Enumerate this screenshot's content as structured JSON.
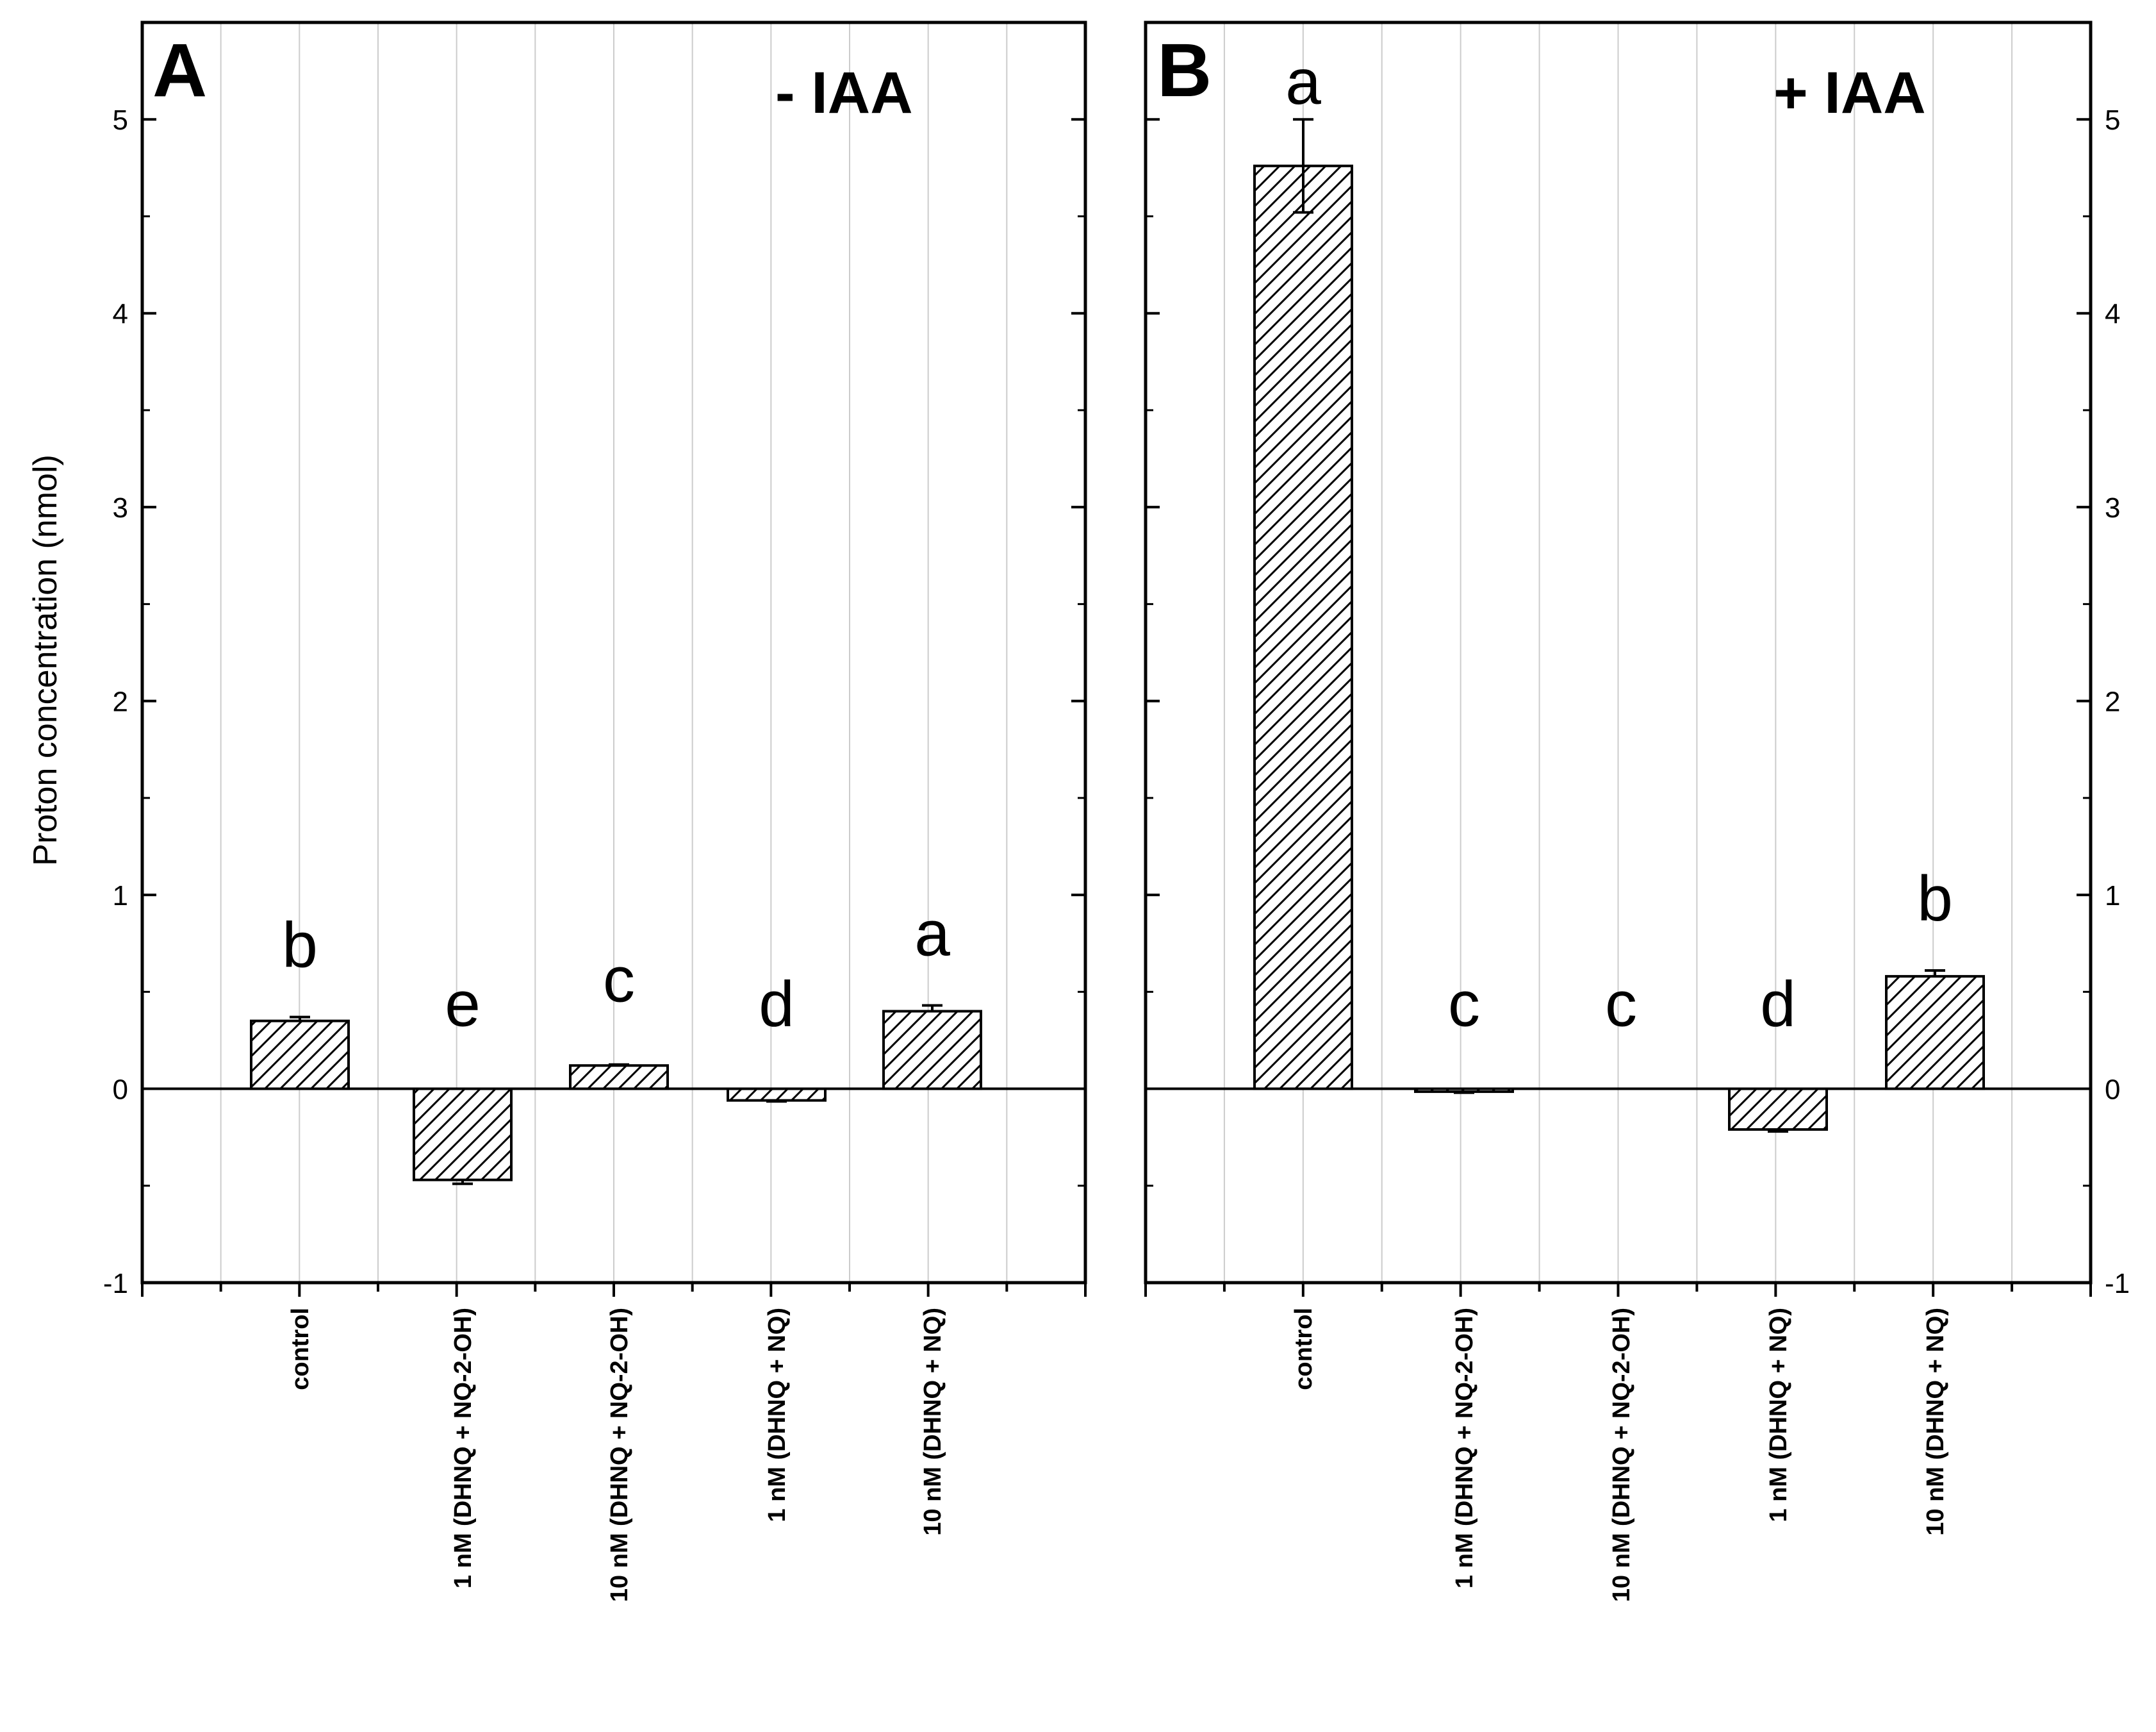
{
  "chart_data": [
    {
      "type": "bar",
      "panel": "A",
      "condition": "- IAA",
      "ylabel": "Proton concentration (nmol)",
      "ylim": [
        -1,
        5.5
      ],
      "yticks": [
        -1,
        0,
        1,
        2,
        3,
        4,
        5
      ],
      "tick_labels": [
        "-1",
        "0",
        "1",
        "2",
        "3",
        "4",
        "5"
      ],
      "categories": [
        "control",
        "1 nM (DHNQ + NQ-2-OH)",
        "10 nM (DHNQ + NQ-2-OH)",
        "1 nM (DHNQ + NQ)",
        "10 nM (DHNQ + NQ)"
      ],
      "values": [
        0.35,
        -0.47,
        0.12,
        -0.06,
        0.4
      ],
      "errors": [
        0.02,
        0.02,
        0.005,
        0.005,
        0.03
      ],
      "significance": [
        "b",
        "e",
        "c",
        "d",
        "a"
      ],
      "pattern": "diagonal hatch",
      "grid": "vertical"
    },
    {
      "type": "bar",
      "panel": "B",
      "condition": "+ IAA",
      "ylabel": "",
      "ylim": [
        -1,
        5.5
      ],
      "yticks": [
        -1,
        0,
        1,
        2,
        3,
        4,
        5
      ],
      "tick_labels": [
        "-1",
        "0",
        "1",
        "2",
        "3",
        "4",
        "5"
      ],
      "categories": [
        "control",
        "1 nM (DHNQ + NQ-2-OH)",
        "10 nM (DHNQ + NQ-2-OH)",
        "1 nM (DHNQ + NQ)",
        "10 nM (DHNQ + NQ)"
      ],
      "values": [
        4.76,
        -0.015,
        0.0,
        -0.21,
        0.58
      ],
      "errors": [
        0.24,
        0.005,
        0.0,
        0.01,
        0.03
      ],
      "significance": [
        "a",
        "c",
        "c",
        "d",
        "b"
      ],
      "pattern": "diagonal hatch",
      "grid": "vertical"
    }
  ],
  "colors": {
    "axis": "#000000",
    "grid": "#cccccc",
    "bar_fill": "#ffffff",
    "hatch": "#000000"
  }
}
